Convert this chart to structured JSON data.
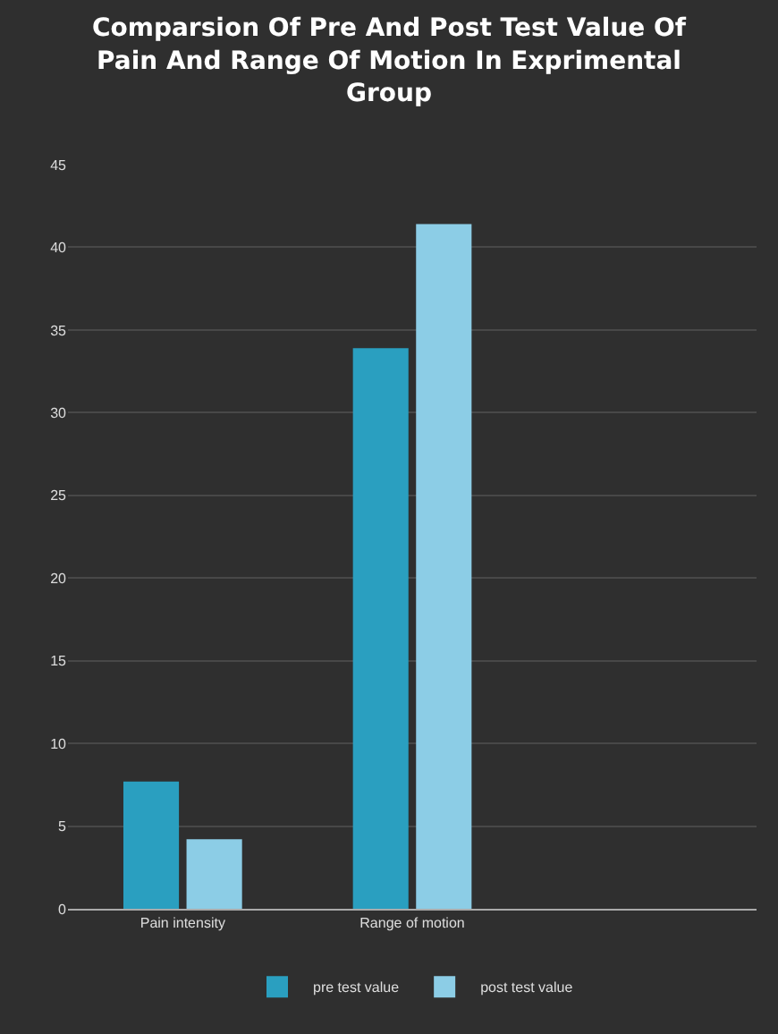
{
  "chart_data": {
    "type": "bar",
    "title": "Comparsion Of Pre And Post Test Value Of Pain And Range Of Motion In Exprimental Group",
    "categories": [
      "Pain intensity",
      "Range of motion"
    ],
    "series": [
      {
        "name": "pre test value",
        "color": "#2a9fc0",
        "values": [
          7.7,
          33.9
        ]
      },
      {
        "name": "post test value",
        "color": "#8ccde6",
        "values": [
          4.2,
          41.4
        ]
      }
    ],
    "ylim": [
      0,
      45
    ],
    "yticks": [
      0,
      5,
      10,
      15,
      20,
      25,
      30,
      35,
      40,
      45
    ],
    "grid": "y",
    "legend": "bottom"
  }
}
